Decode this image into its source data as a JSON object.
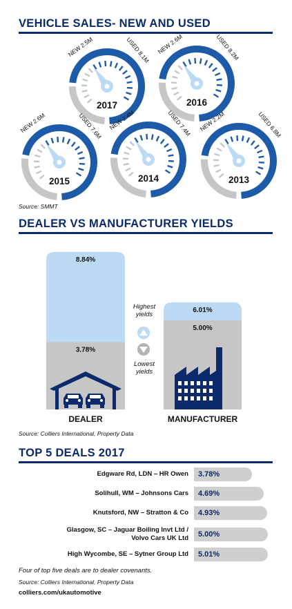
{
  "section1": {
    "title": "VEHICLE SALES- NEW AND USED",
    "source": "Source: SMMT"
  },
  "section2": {
    "title": "DEALER VS MANUFACTURER YIELDS",
    "highest_label_1": "Highest",
    "highest_label_2": "yields",
    "lowest_label_1": "Lowest",
    "lowest_label_2": "yields",
    "source": "Source: Colliers International, Property Data"
  },
  "section3": {
    "title": "TOP 5 DEALS 2017",
    "footnote": "Four of top five deals are to dealer covenants.",
    "source": "Source: Colliers International, Property Data",
    "url": "colliers.com/ukautomotive"
  },
  "colors": {
    "navy": "#0b2a6b",
    "gauge_blue": "#1d5ba8",
    "light_blue": "#bcdaf3",
    "grey": "#c6c6c6"
  },
  "chart_data": [
    {
      "type": "gauge",
      "title": "VEHICLE SALES- NEW AND USED",
      "series_labels": [
        "NEW",
        "USED"
      ],
      "unit": "M",
      "gauges": [
        {
          "year": "2017",
          "new": 2.5,
          "used": 8.1,
          "new_label": "NEW 2.5M",
          "used_label": "USED 8.1M"
        },
        {
          "year": "2016",
          "new": 2.6,
          "used": 8.2,
          "new_label": "NEW 2.6M",
          "used_label": "USED 8.2M"
        },
        {
          "year": "2015",
          "new": 2.6,
          "used": 7.6,
          "new_label": "NEW 2.6M",
          "used_label": "USED 7.6M"
        },
        {
          "year": "2014",
          "new": 2.4,
          "used": 7.4,
          "new_label": "NEW 2.4M",
          "used_label": "USED 7.4M"
        },
        {
          "year": "2013",
          "new": 2.2,
          "used": 6.8,
          "new_label": "NEW 2.2M",
          "used_label": "USED 6.8M"
        }
      ]
    },
    {
      "type": "bar",
      "title": "DEALER VS MANUFACTURER YIELDS",
      "categories": [
        "DEALER",
        "MANUFACTURER"
      ],
      "series": [
        {
          "name": "Highest yields",
          "values": [
            8.84,
            6.01
          ],
          "labels": [
            "8.84%",
            "6.01%"
          ]
        },
        {
          "name": "Lowest yields",
          "values": [
            3.78,
            5.0
          ],
          "labels": [
            "3.78%",
            "5.00%"
          ]
        }
      ],
      "unit": "%"
    },
    {
      "type": "bar",
      "orientation": "horizontal",
      "title": "TOP 5 DEALS 2017",
      "deals": [
        {
          "name_lines": [
            "Edgware Rd, LDN – HR Owen"
          ],
          "value": 3.78,
          "label": "3.78%"
        },
        {
          "name_lines": [
            "Solihull, WM – Johnsons Cars"
          ],
          "value": 4.69,
          "label": "4.69%"
        },
        {
          "name_lines": [
            "Knutsford, NW – Stratton & Co"
          ],
          "value": 4.93,
          "label": "4.93%"
        },
        {
          "name_lines": [
            "Glasgow, SC – Jaguar Boiling Invt Ltd /",
            "Volvo Cars UK Ltd"
          ],
          "value": 5.0,
          "label": "5.00%"
        },
        {
          "name_lines": [
            "High Wycombe, SE – Sytner Group Ltd"
          ],
          "value": 5.01,
          "label": "5.01%"
        }
      ],
      "unit": "%"
    }
  ]
}
